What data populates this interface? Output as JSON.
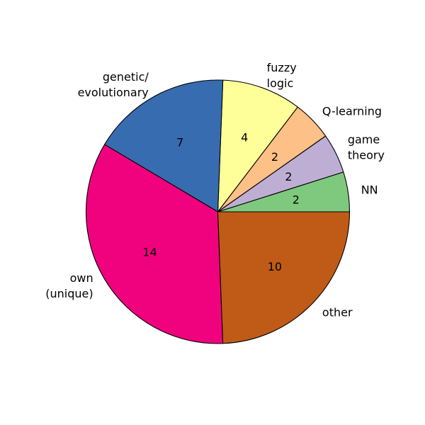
{
  "chart_data": {
    "type": "pie",
    "title": "",
    "start_angle_deg": 0,
    "direction": "counterclockwise",
    "edge_color": "#000000",
    "slices": [
      {
        "label": "NN",
        "value": 2,
        "value_label": "2",
        "color": "#7fc97f"
      },
      {
        "label": "game\ntheory",
        "value": 2,
        "value_label": "2",
        "color": "#beaed4"
      },
      {
        "label": "Q-learning",
        "value": 2,
        "value_label": "2",
        "color": "#fdc086"
      },
      {
        "label": "fuzzy\nlogic",
        "value": 4,
        "value_label": "4",
        "color": "#ffff99"
      },
      {
        "label": "genetic/\nevolutionary",
        "value": 7,
        "value_label": "7",
        "color": "#386cb0"
      },
      {
        "label": "own\n(unique)",
        "value": 14,
        "value_label": "14",
        "color": "#f0027f"
      },
      {
        "label": "other",
        "value": 10,
        "value_label": "10",
        "color": "#bf5b17"
      }
    ]
  }
}
